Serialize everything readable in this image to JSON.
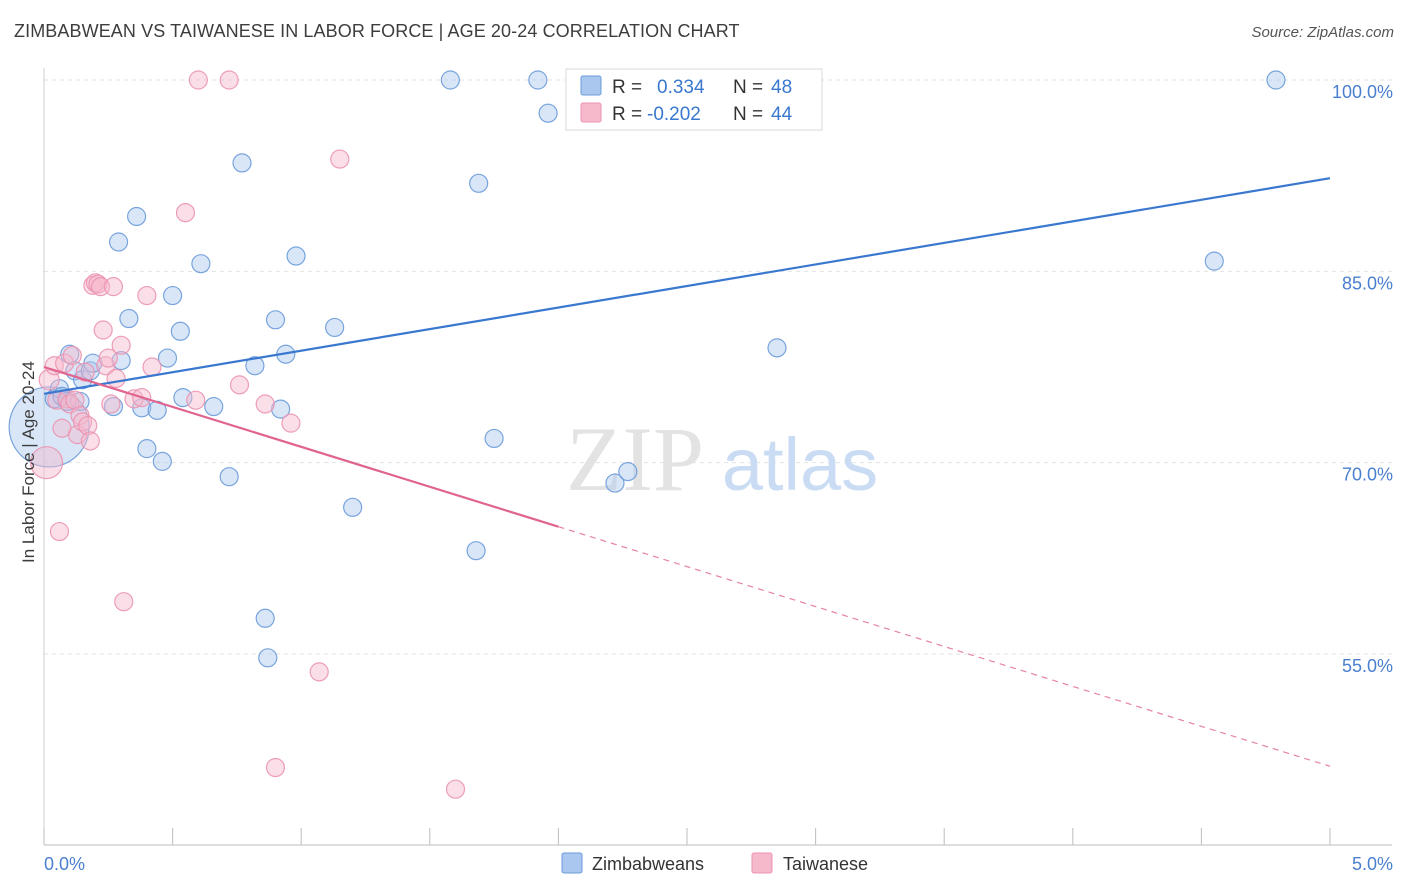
{
  "header": {
    "title": "ZIMBABWEAN VS TAIWANESE IN LABOR FORCE | AGE 20-24 CORRELATION CHART",
    "source": "Source: ZipAtlas.com"
  },
  "watermark": {
    "zip": "ZIP",
    "atlas": "atlas"
  },
  "legend": {
    "r_label": "R =",
    "n_label": "N =",
    "zimbabwean": {
      "r": "0.334",
      "n": "48"
    },
    "taiwanese": {
      "r": "-0.202",
      "n": "44"
    }
  },
  "bottom_legend": {
    "zimbabweans": "Zimbabweans",
    "taiwanese": "Taiwanese"
  },
  "colors": {
    "blue": "#3a78d0",
    "blue_fill": "#a9c7ef",
    "blue_stroke": "#6c9bd9",
    "pink": "#e0648f",
    "pink_fill": "#f6b9cc",
    "pink_stroke": "#eb93b0",
    "axis_text": "#4a7fcf",
    "grid": "#e2e2e2"
  },
  "chart_data": {
    "type": "scatter",
    "title": "ZIMBABWEAN VS TAIWANESE IN LABOR FORCE | AGE 20-24 CORRELATION CHART",
    "xlabel": "",
    "ylabel": "In Labor Force | Age 20-24",
    "xlim": [
      0,
      5
    ],
    "ylim": [
      40,
      101
    ],
    "x_tick_labels": [
      "0.0%",
      "5.0%"
    ],
    "y_ticks": [
      55,
      70,
      85,
      100
    ],
    "y_tick_labels": [
      "55.0%",
      "70.0%",
      "85.0%",
      "100.0%"
    ],
    "grid": true,
    "series": [
      {
        "name": "Zimbabweans",
        "r": 0.334,
        "n": 48,
        "trend": {
          "x": [
            0.0,
            5.0
          ],
          "y": [
            75.4,
            92.3
          ],
          "solid_until": 5.0
        },
        "points": [
          [
            0.02,
            72.8,
            40
          ],
          [
            0.04,
            75.0,
            9
          ],
          [
            0.06,
            75.8,
            9
          ],
          [
            0.07,
            75.2,
            9
          ],
          [
            0.09,
            74.8,
            9
          ],
          [
            0.1,
            78.5,
            9
          ],
          [
            0.12,
            77.2,
            9
          ],
          [
            0.14,
            74.8,
            9
          ],
          [
            0.15,
            76.5,
            9
          ],
          [
            0.18,
            77.2,
            9
          ],
          [
            0.19,
            77.8,
            9
          ],
          [
            0.27,
            74.4,
            9
          ],
          [
            0.29,
            87.3,
            9
          ],
          [
            0.3,
            78.0,
            9
          ],
          [
            0.33,
            81.3,
            9
          ],
          [
            0.36,
            89.3,
            9
          ],
          [
            0.38,
            74.3,
            9
          ],
          [
            0.4,
            71.1,
            9
          ],
          [
            0.44,
            74.1,
            9
          ],
          [
            0.46,
            70.1,
            9
          ],
          [
            0.48,
            78.2,
            9
          ],
          [
            0.5,
            83.1,
            9
          ],
          [
            0.53,
            80.3,
            9
          ],
          [
            0.54,
            75.1,
            9
          ],
          [
            0.61,
            85.6,
            9
          ],
          [
            0.66,
            74.4,
            9
          ],
          [
            0.72,
            68.9,
            9
          ],
          [
            0.77,
            93.5,
            9
          ],
          [
            0.82,
            77.6,
            9
          ],
          [
            0.86,
            57.8,
            9
          ],
          [
            0.9,
            81.2,
            9
          ],
          [
            0.92,
            74.2,
            9
          ],
          [
            0.94,
            78.5,
            9
          ],
          [
            0.98,
            86.2,
            9
          ],
          [
            1.13,
            80.6,
            9
          ],
          [
            1.2,
            66.5,
            9
          ],
          [
            1.58,
            100.0,
            9
          ],
          [
            1.68,
            63.1,
            9
          ],
          [
            1.69,
            91.9,
            9
          ],
          [
            1.75,
            71.9,
            9
          ],
          [
            1.92,
            100.0,
            9
          ],
          [
            1.96,
            97.4,
            9
          ],
          [
            2.22,
            68.4,
            9
          ],
          [
            2.27,
            69.3,
            9
          ],
          [
            2.85,
            79.0,
            9
          ],
          [
            4.55,
            85.8,
            9
          ],
          [
            4.79,
            100.0,
            9
          ],
          [
            0.87,
            54.7,
            9
          ]
        ]
      },
      {
        "name": "Taiwanese",
        "r": -0.202,
        "n": 44,
        "trend": {
          "x": [
            0.0,
            5.0
          ],
          "y": [
            77.5,
            46.2
          ],
          "solid_until": 2.0
        },
        "points": [
          [
            0.01,
            70.0,
            16
          ],
          [
            0.02,
            76.5,
            10
          ],
          [
            0.04,
            77.6,
            9
          ],
          [
            0.05,
            74.9,
            9
          ],
          [
            0.06,
            64.6,
            9
          ],
          [
            0.07,
            72.7,
            9
          ],
          [
            0.08,
            77.8,
            9
          ],
          [
            0.09,
            75.0,
            9
          ],
          [
            0.1,
            74.6,
            9
          ],
          [
            0.11,
            78.4,
            9
          ],
          [
            0.12,
            74.9,
            9
          ],
          [
            0.13,
            72.2,
            9
          ],
          [
            0.14,
            73.7,
            9
          ],
          [
            0.15,
            73.2,
            9
          ],
          [
            0.16,
            77.1,
            9
          ],
          [
            0.17,
            72.9,
            9
          ],
          [
            0.18,
            71.7,
            9
          ],
          [
            0.19,
            83.9,
            9
          ],
          [
            0.2,
            84.1,
            9
          ],
          [
            0.21,
            84.0,
            9
          ],
          [
            0.22,
            83.8,
            9
          ],
          [
            0.23,
            80.4,
            9
          ],
          [
            0.24,
            77.6,
            9
          ],
          [
            0.25,
            78.2,
            9
          ],
          [
            0.26,
            74.6,
            9
          ],
          [
            0.27,
            83.8,
            9
          ],
          [
            0.28,
            76.6,
            9
          ],
          [
            0.3,
            79.2,
            9
          ],
          [
            0.31,
            59.1,
            9
          ],
          [
            0.35,
            75.0,
            9
          ],
          [
            0.38,
            75.1,
            9
          ],
          [
            0.4,
            83.1,
            9
          ],
          [
            0.42,
            77.5,
            9
          ],
          [
            0.55,
            89.6,
            9
          ],
          [
            0.59,
            74.9,
            9
          ],
          [
            0.6,
            100.0,
            9
          ],
          [
            0.72,
            100.0,
            9
          ],
          [
            0.76,
            76.1,
            9
          ],
          [
            0.86,
            74.6,
            9
          ],
          [
            0.96,
            73.1,
            9
          ],
          [
            1.07,
            53.6,
            9
          ],
          [
            1.15,
            93.8,
            9
          ],
          [
            0.9,
            46.1,
            9
          ],
          [
            1.6,
            44.4,
            9
          ]
        ]
      }
    ]
  }
}
